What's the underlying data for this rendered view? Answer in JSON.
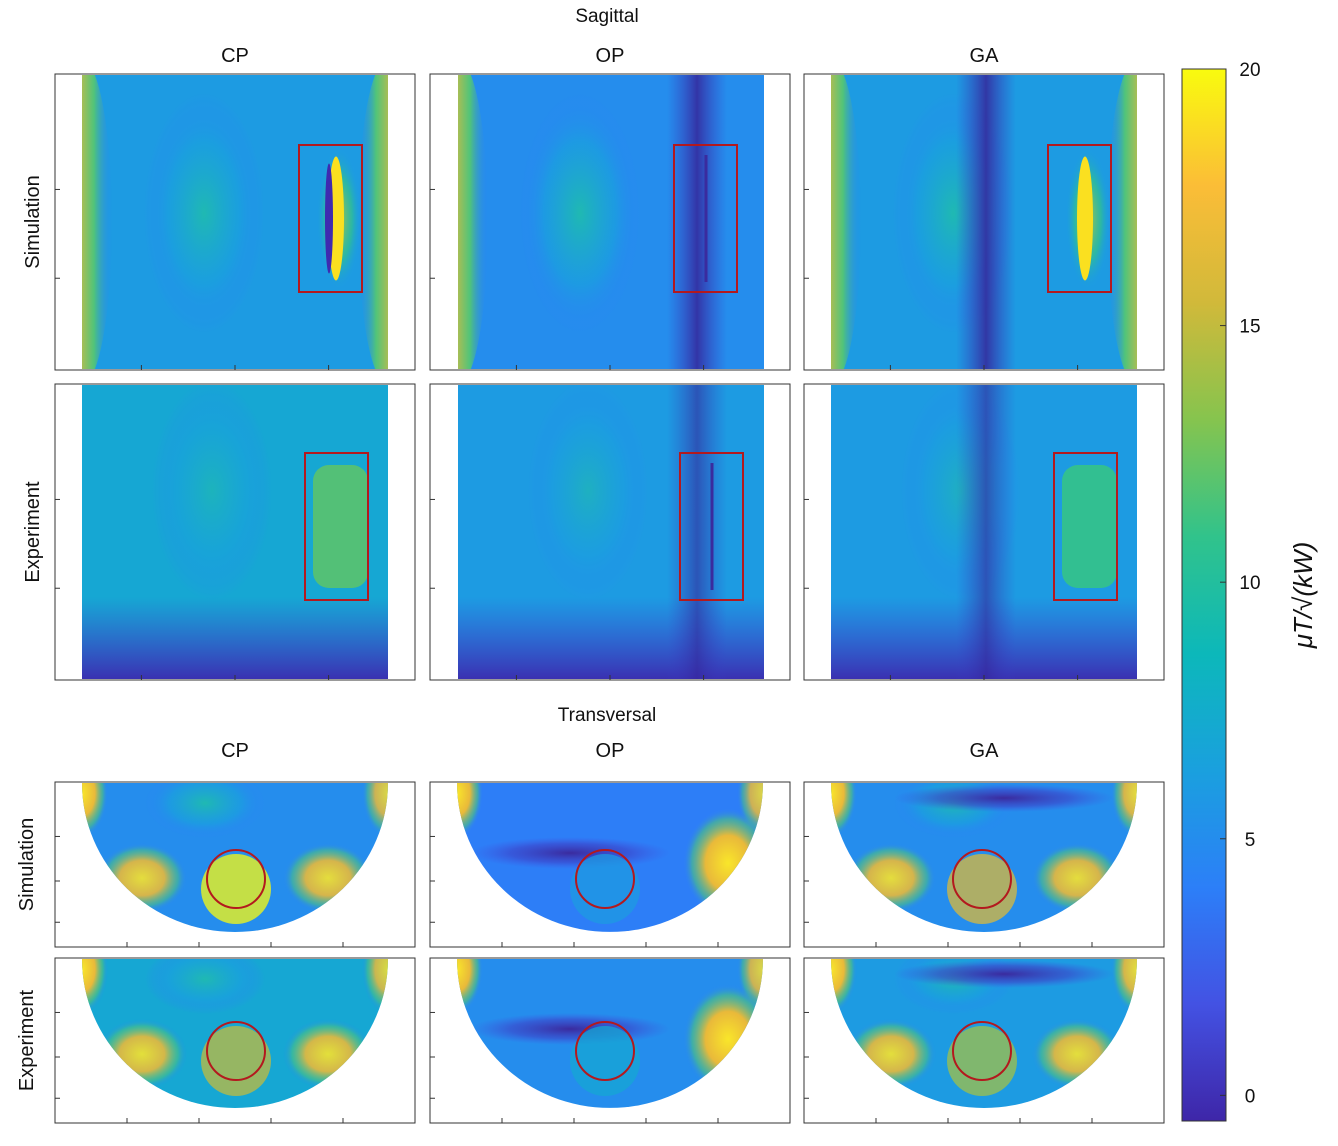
{
  "chart_data": {
    "type": "heatmap",
    "sections": [
      {
        "title": "Sagittal",
        "view": "sagittal"
      },
      {
        "title": "Transversal",
        "view": "transversal"
      }
    ],
    "columns": [
      "CP",
      "OP",
      "GA"
    ],
    "rows": [
      "Simulation",
      "Experiment"
    ],
    "colorbar": {
      "label": "μT/√(kW)",
      "ticks": [
        {
          "value": 0,
          "label": "0"
        },
        {
          "value": 5,
          "label": "5"
        },
        {
          "value": 10,
          "label": "10"
        },
        {
          "value": 15,
          "label": "15"
        },
        {
          "value": 20,
          "label": "20"
        }
      ],
      "range": [
        -0.5,
        20
      ],
      "colormap": [
        "#3e26a8",
        "#4352e3",
        "#2c7ff8",
        "#1aa0de",
        "#0cb8ba",
        "#31c38b",
        "#86c44e",
        "#d1b93a",
        "#fbbd37",
        "#f9fb0e"
      ]
    },
    "highlight": {
      "color": "#b3191e",
      "sagittal_shape": "rectangle",
      "transversal_shape": "circle"
    },
    "approx_field_levels": {
      "sagittal": {
        "Simulation": {
          "CP": {
            "background": 6,
            "region_peak": 19
          },
          "OP": {
            "background": 5,
            "region_peak": 4
          },
          "GA": {
            "background": 6,
            "region_peak": 19
          }
        },
        "Experiment": {
          "CP": {
            "background": 7,
            "region_peak": 12
          },
          "OP": {
            "background": 6,
            "region_peak": 7
          },
          "GA": {
            "background": 6,
            "region_peak": 11
          }
        }
      },
      "transversal": {
        "Simulation": {
          "CP": {
            "background": 5,
            "region_peak": 20
          },
          "OP": {
            "background": 4,
            "region_peak": 6
          },
          "GA": {
            "background": 5,
            "region_peak": 16
          }
        },
        "Experiment": {
          "CP": {
            "background": 7,
            "region_peak": 15
          },
          "OP": {
            "background": 5,
            "region_peak": 7
          },
          "GA": {
            "background": 6,
            "region_peak": 14
          }
        }
      }
    }
  }
}
